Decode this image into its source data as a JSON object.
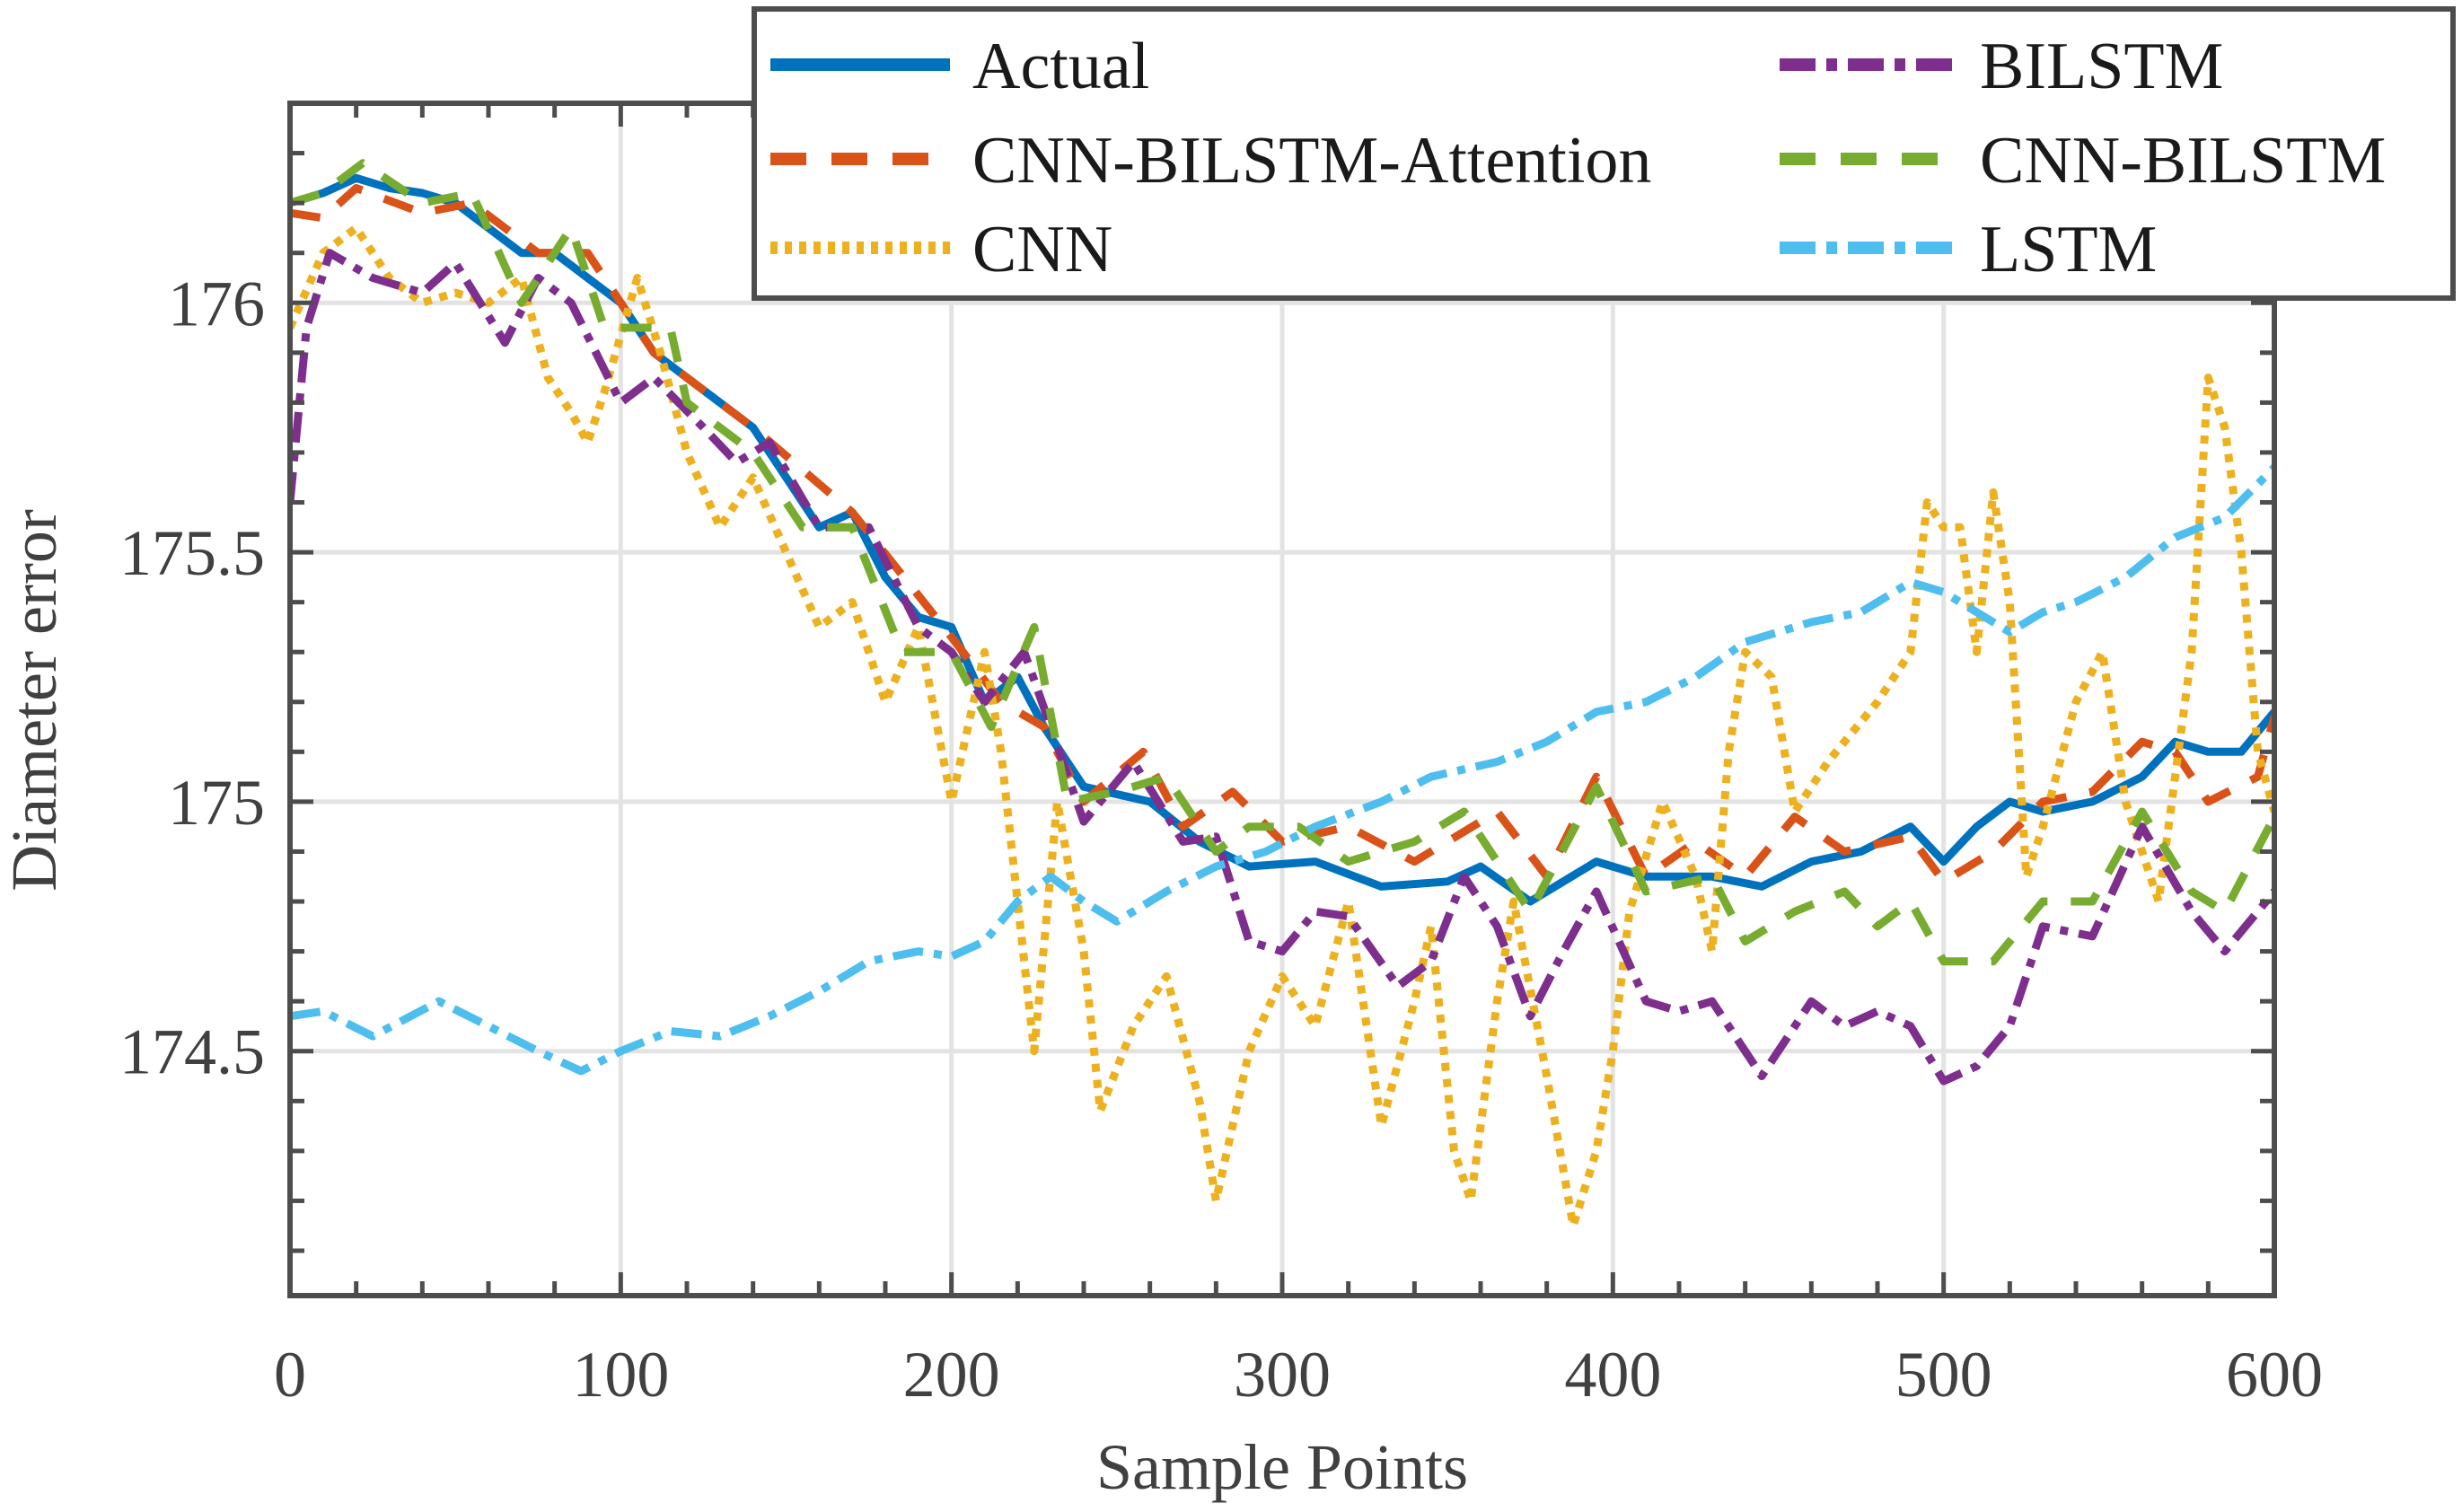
{
  "chart_data": {
    "type": "line",
    "title": "",
    "xlabel": "Sample Points",
    "ylabel": "Diameter error",
    "xlim": [
      0,
      600
    ],
    "ylim": [
      174.01,
      176.4
    ],
    "xticks": [
      0,
      100,
      200,
      300,
      400,
      500,
      600
    ],
    "xtick_labels": [
      "0",
      "100",
      "200",
      "300",
      "400",
      "500",
      "600"
    ],
    "yticks": [
      174.5,
      175,
      175.5,
      176
    ],
    "ytick_labels": [
      "174.5",
      "175",
      "175.5",
      "176"
    ],
    "grid": true,
    "legend_position": "top-right",
    "series": [
      {
        "name": "Actual",
        "color": "#0072BD",
        "style": "solid",
        "x": [
          0,
          10,
          20,
          30,
          40,
          50,
          60,
          70,
          80,
          90,
          100,
          110,
          120,
          130,
          140,
          150,
          160,
          170,
          180,
          190,
          200,
          210,
          220,
          228,
          240,
          260,
          275,
          290,
          310,
          330,
          350,
          360,
          375,
          395,
          410,
          430,
          445,
          460,
          475,
          490,
          500,
          510,
          520,
          530,
          545,
          560,
          570,
          580,
          590,
          600
        ],
        "y": [
          176.2,
          176.22,
          176.25,
          176.23,
          176.22,
          176.2,
          176.15,
          176.1,
          176.1,
          176.05,
          176.0,
          175.9,
          175.85,
          175.8,
          175.75,
          175.65,
          175.55,
          175.58,
          175.45,
          175.37,
          175.35,
          175.2,
          175.25,
          175.15,
          175.03,
          175.0,
          174.92,
          174.87,
          174.88,
          174.83,
          174.84,
          174.87,
          174.8,
          174.88,
          174.85,
          174.85,
          174.83,
          174.88,
          174.9,
          174.95,
          174.88,
          174.95,
          175.0,
          174.98,
          175.0,
          175.05,
          175.12,
          175.1,
          175.1,
          175.18
        ]
      },
      {
        "name": "CNN-BILSTM-Attention",
        "color": "#D95319",
        "style": "dashed",
        "x": [
          0,
          10,
          20,
          40,
          55,
          75,
          90,
          110,
          140,
          170,
          200,
          215,
          228,
          240,
          258,
          270,
          285,
          300,
          320,
          340,
          365,
          380,
          395,
          410,
          425,
          440,
          455,
          470,
          490,
          500,
          515,
          530,
          545,
          560,
          570,
          580,
          595,
          600
        ],
        "y": [
          176.18,
          176.17,
          176.23,
          176.18,
          176.2,
          176.1,
          176.1,
          175.9,
          175.75,
          175.58,
          175.33,
          175.2,
          175.15,
          175.0,
          175.1,
          174.95,
          175.02,
          174.92,
          174.95,
          174.88,
          174.98,
          174.85,
          175.05,
          174.85,
          174.92,
          174.85,
          174.97,
          174.9,
          174.93,
          174.84,
          174.9,
          175.0,
          175.02,
          175.12,
          175.1,
          175.0,
          175.05,
          175.17
        ]
      },
      {
        "name": "CNN",
        "color": "#EDB120",
        "style": "dotted",
        "x": [
          0,
          10,
          20,
          30,
          40,
          50,
          60,
          70,
          78,
          85,
          90,
          95,
          105,
          112,
          120,
          130,
          140,
          150,
          160,
          170,
          180,
          190,
          200,
          210,
          215,
          220,
          225,
          232,
          240,
          245,
          255,
          265,
          275,
          280,
          290,
          300,
          310,
          320,
          330,
          340,
          345,
          352,
          357,
          365,
          370,
          380,
          388,
          395,
          400,
          405,
          415,
          425,
          430,
          435,
          440,
          448,
          455,
          465,
          470,
          480,
          490,
          495,
          500,
          505,
          510,
          515,
          520,
          525,
          530,
          540,
          548,
          555,
          565,
          575,
          580,
          585,
          590,
          595,
          600
        ],
        "y": [
          175.95,
          176.1,
          176.15,
          176.05,
          176.0,
          176.02,
          176.0,
          176.05,
          175.85,
          175.78,
          175.72,
          175.82,
          176.05,
          175.9,
          175.7,
          175.55,
          175.65,
          175.5,
          175.35,
          175.4,
          175.2,
          175.35,
          175.0,
          175.3,
          175.1,
          174.8,
          174.5,
          175.0,
          174.7,
          174.38,
          174.55,
          174.65,
          174.4,
          174.2,
          174.5,
          174.65,
          174.55,
          174.8,
          174.35,
          174.6,
          174.75,
          174.3,
          174.2,
          174.6,
          174.8,
          174.45,
          174.15,
          174.3,
          174.5,
          174.78,
          175.0,
          174.85,
          174.7,
          175.1,
          175.3,
          175.25,
          174.98,
          175.08,
          175.12,
          175.2,
          175.3,
          175.6,
          175.55,
          175.55,
          175.3,
          175.62,
          175.4,
          174.85,
          174.95,
          175.2,
          175.3,
          175.0,
          174.8,
          175.3,
          175.85,
          175.75,
          175.5,
          175.1,
          174.98
        ]
      },
      {
        "name": "BILSTM",
        "color": "#7E2F8E",
        "style": "dashdot",
        "x": [
          0,
          5,
          12,
          25,
          40,
          50,
          65,
          75,
          85,
          100,
          110,
          125,
          135,
          145,
          160,
          175,
          190,
          200,
          210,
          222,
          230,
          240,
          255,
          270,
          280,
          290,
          300,
          310,
          320,
          335,
          345,
          355,
          365,
          375,
          385,
          395,
          410,
          420,
          430,
          445,
          460,
          470,
          480,
          490,
          500,
          510,
          520,
          530,
          545,
          560,
          575,
          585,
          600
        ],
        "y": [
          175.6,
          175.95,
          176.1,
          176.05,
          176.02,
          176.08,
          175.92,
          176.05,
          176.0,
          175.8,
          175.85,
          175.75,
          175.68,
          175.72,
          175.55,
          175.55,
          175.35,
          175.3,
          175.2,
          175.3,
          175.15,
          174.96,
          175.08,
          174.92,
          174.93,
          174.72,
          174.7,
          174.78,
          174.77,
          174.63,
          174.68,
          174.85,
          174.75,
          174.57,
          174.7,
          174.82,
          174.6,
          174.58,
          174.6,
          174.45,
          174.6,
          174.55,
          174.58,
          174.55,
          174.44,
          174.47,
          174.55,
          174.75,
          174.73,
          174.95,
          174.78,
          174.7,
          174.82
        ]
      },
      {
        "name": "CNN-BILSTM",
        "color": "#77AC30",
        "style": "dashed",
        "x": [
          0,
          10,
          22,
          40,
          55,
          70,
          85,
          95,
          115,
          120,
          140,
          155,
          170,
          185,
          200,
          212,
          225,
          235,
          250,
          265,
          280,
          290,
          305,
          320,
          340,
          355,
          375,
          395,
          410,
          430,
          440,
          455,
          470,
          480,
          490,
          500,
          515,
          530,
          545,
          560,
          575,
          585,
          600
        ],
        "y": [
          176.2,
          176.22,
          176.28,
          176.2,
          176.22,
          176.0,
          176.15,
          175.95,
          175.95,
          175.8,
          175.7,
          175.55,
          175.55,
          175.3,
          175.3,
          175.15,
          175.35,
          175.0,
          175.02,
          175.05,
          174.9,
          174.95,
          174.95,
          174.88,
          174.92,
          174.98,
          174.78,
          175.03,
          174.82,
          174.85,
          174.72,
          174.78,
          174.82,
          174.75,
          174.8,
          174.68,
          174.68,
          174.8,
          174.8,
          174.98,
          174.82,
          174.78,
          174.97
        ]
      },
      {
        "name": "LSTM",
        "color": "#4DBEEE",
        "style": "dashdot",
        "x": [
          0,
          10,
          25,
          45,
          60,
          75,
          88,
          100,
          115,
          130,
          145,
          160,
          175,
          190,
          200,
          210,
          220,
          230,
          240,
          250,
          265,
          280,
          295,
          310,
          330,
          345,
          365,
          380,
          395,
          410,
          425,
          440,
          460,
          475,
          490,
          500,
          510,
          520,
          530,
          540,
          555,
          570,
          585,
          600
        ],
        "y": [
          174.57,
          174.58,
          174.53,
          174.6,
          174.55,
          174.5,
          174.46,
          174.5,
          174.54,
          174.53,
          174.57,
          174.62,
          174.68,
          174.7,
          174.69,
          174.72,
          174.8,
          174.85,
          174.8,
          174.76,
          174.82,
          174.87,
          174.9,
          174.95,
          175.0,
          175.05,
          175.08,
          175.12,
          175.18,
          175.2,
          175.25,
          175.32,
          175.36,
          175.38,
          175.44,
          175.42,
          175.38,
          175.34,
          175.38,
          175.4,
          175.45,
          175.53,
          175.57,
          175.67
        ]
      }
    ]
  }
}
